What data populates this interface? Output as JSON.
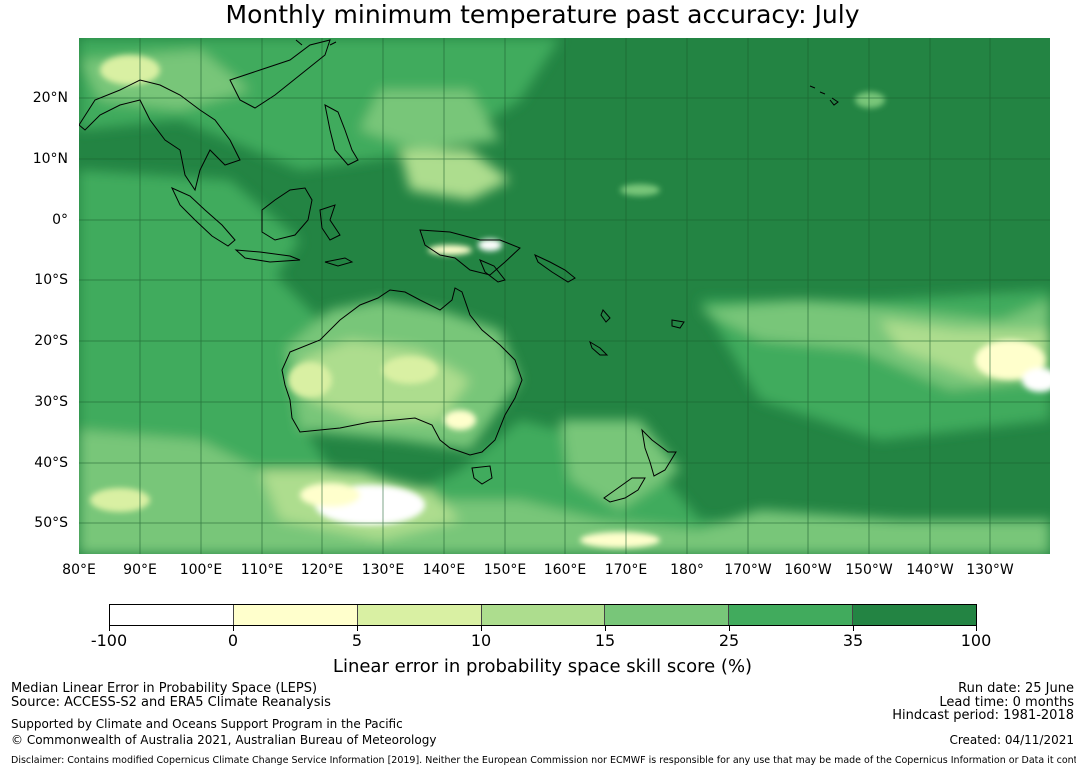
{
  "title": "Monthly minimum temperature past accuracy: July",
  "map": {
    "lat_labels": [
      "20°N",
      "10°N",
      "0°",
      "10°S",
      "20°S",
      "30°S",
      "40°S",
      "50°S"
    ],
    "lon_labels": [
      "80°E",
      "90°E",
      "100°E",
      "110°E",
      "120°E",
      "130°E",
      "140°E",
      "150°E",
      "160°E",
      "170°E",
      "180°",
      "170°W",
      "160°W",
      "150°W",
      "140°W",
      "130°W"
    ],
    "background_color": "#238443"
  },
  "colorbar": {
    "ticks": [
      "-100",
      "0",
      "5",
      "10",
      "15",
      "25",
      "35",
      "100"
    ],
    "colors": [
      "#ffffff",
      "#ffffcc",
      "#d9f0a3",
      "#addd8e",
      "#78c679",
      "#41ab5d",
      "#238443"
    ],
    "label": "Linear error in probability space skill score (%)"
  },
  "footer": {
    "left_line1": "Median Linear Error in Probability Space (LEPS)",
    "left_line2": "Source: ACCESS-S2 and ERA5 Climate Reanalysis",
    "left_line3": "Supported by Climate and Oceans Support Program in the Pacific",
    "left_line4": "© Commonwealth of Australia 2021, Australian Bureau of Meteorology",
    "right_line1": "Run date: 25 June",
    "right_line2": "Lead time: 0 months",
    "right_line3": "Hindcast period: 1981-2018",
    "right_line4": "Created: 04/11/2021",
    "disclaimer": "Disclaimer: Contains modified Copernicus Climate Change Service Information [2019]. Neither the European Commission nor ECMWF is responsible for any use that may be made of the Copernicus Information or Data it contains."
  }
}
